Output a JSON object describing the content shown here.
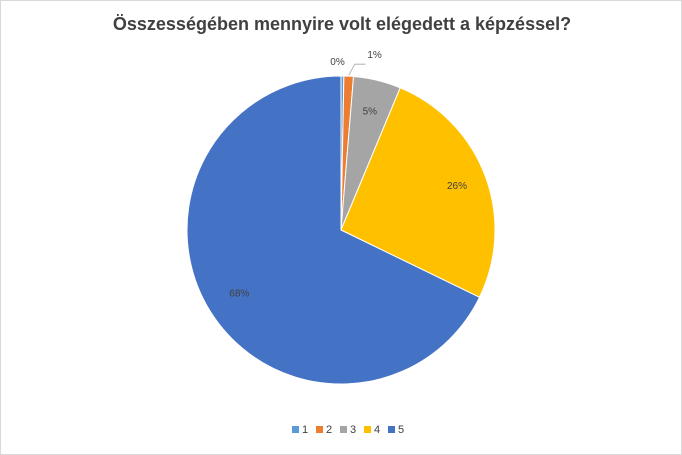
{
  "chart_data": {
    "type": "pie",
    "title": "Összességében mennyire volt elégedett a képzéssel?",
    "categories": [
      "1",
      "2",
      "3",
      "4",
      "5"
    ],
    "values": [
      0.3,
      1,
      5,
      26,
      68
    ],
    "data_labels": [
      "0%",
      "1%",
      "5%",
      "26%",
      "68%"
    ],
    "colors": [
      "#5b9bd5",
      "#ed7d31",
      "#a5a5a5",
      "#ffc000",
      "#4472c4"
    ],
    "legend_position": "bottom"
  }
}
